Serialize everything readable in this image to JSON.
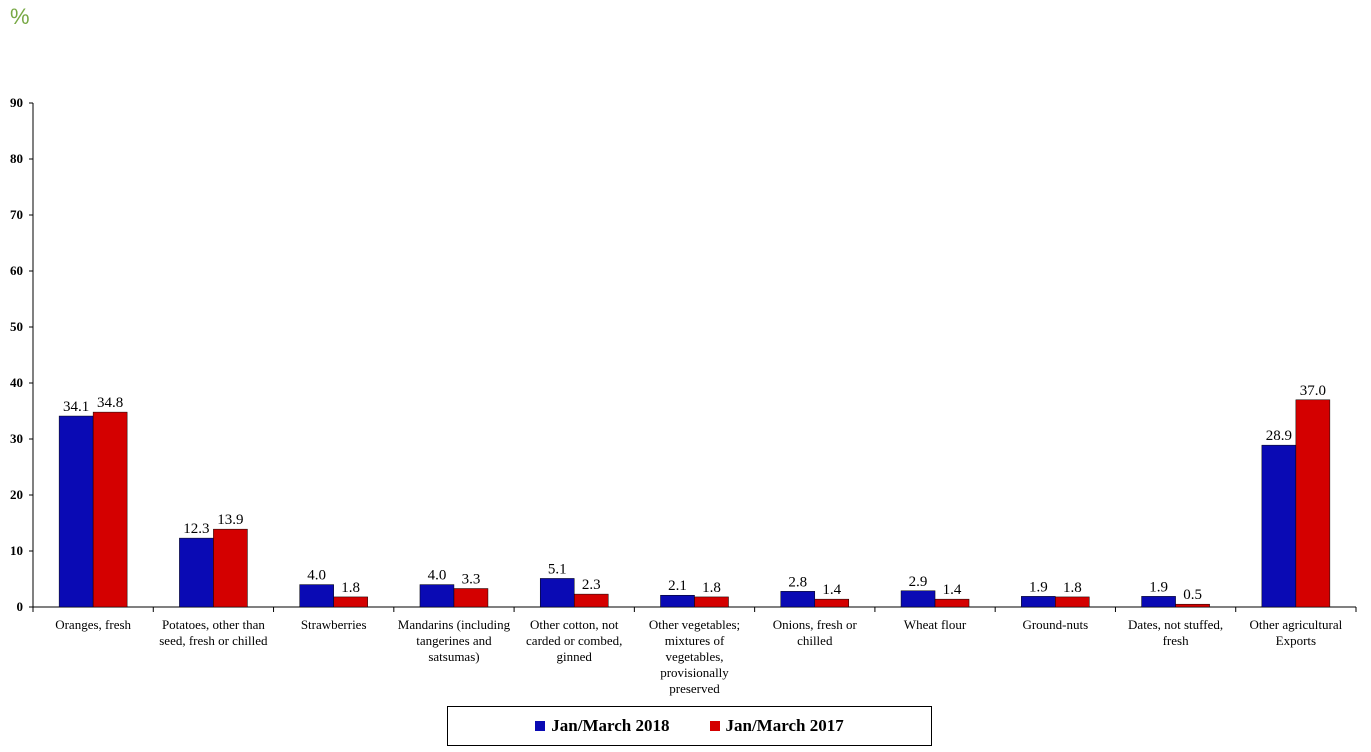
{
  "unit_label": "%",
  "chart_data": {
    "type": "bar",
    "title": "",
    "xlabel": "",
    "ylabel": "%",
    "ylim": [
      0,
      90
    ],
    "yticks": [
      0,
      10,
      20,
      30,
      40,
      50,
      60,
      70,
      80,
      90
    ],
    "grid": false,
    "legend_position": "bottom",
    "categories": [
      "Oranges, fresh",
      "Potatoes, other than seed, fresh or chilled",
      "Strawberries",
      "Mandarins (including tangerines and satsumas)",
      "Other cotton, not carded or combed, ginned",
      "Other vegetables; mixtures of vegetables, provisionally preserved",
      "Onions, fresh or chilled",
      "Wheat flour",
      "Ground-nuts",
      "Dates, not stuffed, fresh",
      "Other agricultural Exports"
    ],
    "series": [
      {
        "name": "Jan/March 2018",
        "color": "#0a0ab4",
        "values": [
          34.1,
          12.3,
          4.0,
          4.0,
          5.1,
          2.1,
          2.8,
          2.9,
          1.9,
          1.9,
          28.9
        ],
        "labels": [
          "34.1",
          "12.3",
          "4.0",
          "4.0",
          "5.1",
          "2.1",
          "2.8",
          "2.9",
          "1.9",
          "1.9",
          "28.9"
        ]
      },
      {
        "name": "Jan/March 2017",
        "color": "#d40000",
        "values": [
          34.8,
          13.9,
          1.8,
          3.3,
          2.3,
          1.8,
          1.4,
          1.4,
          1.8,
          0.5,
          37.0
        ],
        "labels": [
          "34.8",
          "13.9",
          "1.8",
          "3.3",
          "2.3",
          "1.8",
          "1.4",
          "1.4",
          "1.8",
          "0.5",
          "37.0"
        ]
      }
    ]
  }
}
